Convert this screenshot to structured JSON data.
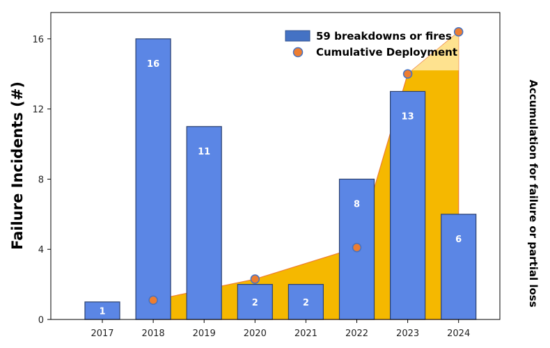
{
  "chart_data": {
    "type": "bar",
    "categories": [
      "2017",
      "2018",
      "2019",
      "2020",
      "2021",
      "2022",
      "2023",
      "2024"
    ],
    "series": [
      {
        "name": "59 breakdowns or fires",
        "type": "bar",
        "values": [
          1,
          16,
          11,
          2,
          2,
          8,
          13,
          6
        ],
        "data_labels": [
          "1",
          "16",
          "11",
          "2",
          "2",
          "8",
          "13",
          "6"
        ],
        "color": "#5B86E5"
      },
      {
        "name": "Cumulative Deployment",
        "type": "area+scatter",
        "x": [
          "2018",
          "2020",
          "2022",
          "2023",
          "2024"
        ],
        "values": [
          1.1,
          2.3,
          4.1,
          14.0,
          16.4
        ],
        "color": "#ED7D31",
        "fill_color": "#F5B800"
      }
    ],
    "xlabel": "",
    "ylabel": "Failure Incidents (#)",
    "ylabel_right": "Accumulation for failure or partial loss",
    "ylim": [
      0,
      17.5
    ],
    "yticks": [
      "0",
      "4",
      "8",
      "12",
      "16"
    ],
    "grid": false,
    "legend": {
      "position": "top-right",
      "entries": [
        "59 breakdowns or fires",
        "Cumulative Deployment"
      ]
    }
  }
}
